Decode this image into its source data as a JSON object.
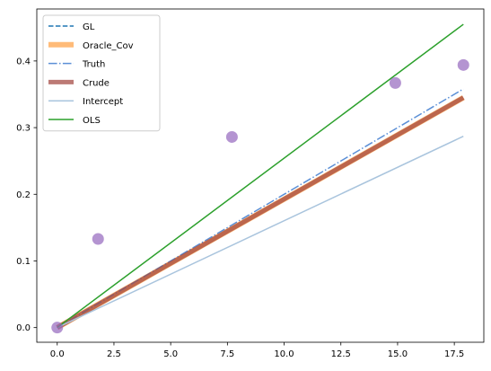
{
  "chart_data": {
    "type": "line",
    "title": "",
    "xlabel": "",
    "ylabel": "",
    "xlim": [
      -0.9,
      18.8
    ],
    "ylim": [
      -0.022,
      0.478
    ],
    "xticks": [
      0.0,
      2.5,
      5.0,
      7.5,
      10.0,
      12.5,
      15.0,
      17.5
    ],
    "xtick_labels": [
      "0.0",
      "2.5",
      "5.0",
      "7.5",
      "10.0",
      "12.5",
      "15.0",
      "17.5"
    ],
    "yticks": [
      0.0,
      0.1,
      0.2,
      0.3,
      0.4
    ],
    "ytick_labels": [
      "0.0",
      "0.1",
      "0.2",
      "0.3",
      "0.4"
    ],
    "grid": false,
    "legend_position": "top-left",
    "series": [
      {
        "name": "GL",
        "style": "dashed",
        "color": "#1f77b4",
        "width": 1.5,
        "opacity": 1,
        "x": [
          0,
          17.9
        ],
        "y": [
          0,
          0.345
        ]
      },
      {
        "name": "Oracle_Cov",
        "style": "solid",
        "color": "#ffbb78",
        "width": 6,
        "opacity": 1,
        "x": [
          0,
          17.9
        ],
        "y": [
          0,
          0.345
        ]
      },
      {
        "name": "Truth",
        "style": "dashdot",
        "color": "#5b8fd6",
        "width": 1.5,
        "opacity": 1,
        "x": [
          0,
          17.9
        ],
        "y": [
          0,
          0.358
        ]
      },
      {
        "name": "Crude",
        "style": "solid",
        "color": "#a0413b",
        "width": 5,
        "opacity": 0.7,
        "x": [
          0,
          17.9
        ],
        "y": [
          0,
          0.345
        ]
      },
      {
        "name": "Intercept",
        "style": "solid",
        "color": "#a9c4dd",
        "width": 1.5,
        "opacity": 1,
        "x": [
          0,
          17.9
        ],
        "y": [
          0,
          0.287
        ]
      },
      {
        "name": "OLS",
        "style": "solid",
        "color": "#2ca02c",
        "width": 1.5,
        "opacity": 1,
        "x": [
          0,
          17.9
        ],
        "y": [
          0,
          0.455
        ]
      }
    ],
    "scatter": {
      "color": "#9467bd",
      "opacity": 0.7,
      "points": [
        {
          "x": 0.0,
          "y": 0.0
        },
        {
          "x": 1.8,
          "y": 0.133
        },
        {
          "x": 7.7,
          "y": 0.286
        },
        {
          "x": 14.9,
          "y": 0.367
        },
        {
          "x": 17.9,
          "y": 0.394
        }
      ]
    }
  }
}
